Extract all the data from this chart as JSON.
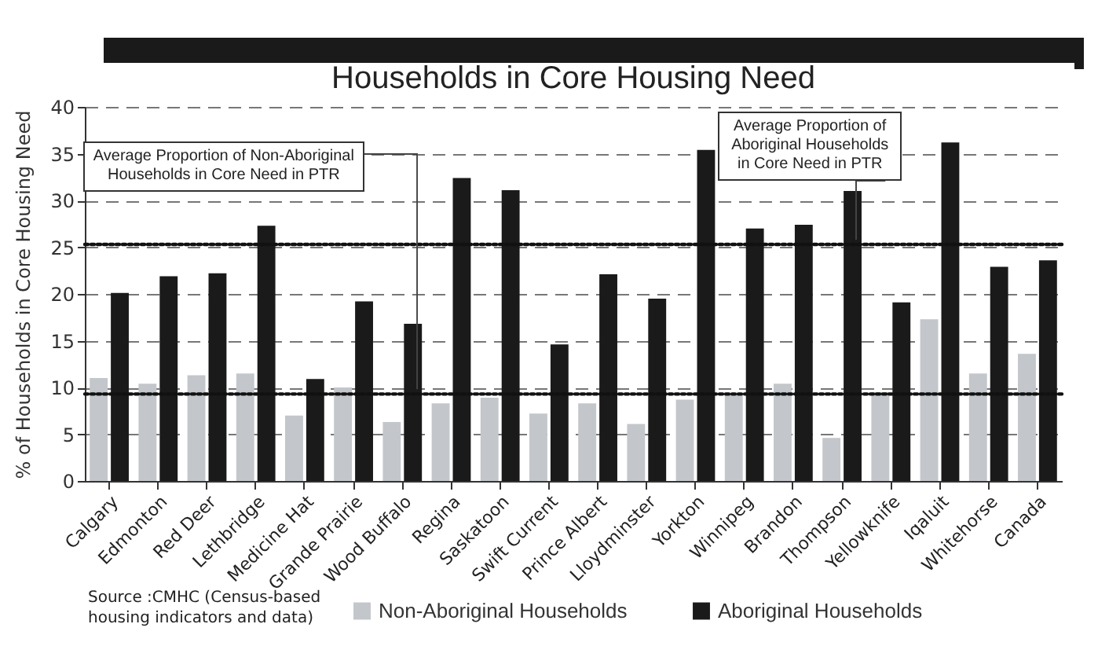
{
  "chart_data": {
    "type": "bar",
    "title": "Households in Core Housing Need",
    "ylabel": "% of Households in Core Housing Need",
    "categories": [
      "Calgary",
      "Edmonton",
      "Red Deer",
      "Lethbridge",
      "Medicine Hat",
      "Grande Prairie",
      "Wood Buffalo",
      "Regina",
      "Saskatoon",
      "Swift Current",
      "Prince Albert",
      "Lloydminster",
      "Yorkton",
      "Winnipeg",
      "Brandon",
      "Thompson",
      "Yellowknife",
      "Iqaluit",
      "Whitehorse",
      "Canada"
    ],
    "series": [
      {
        "name": "Non-Aboriginal Households",
        "color": "#c3c6ca",
        "values": [
          11,
          10.4,
          11.3,
          11.5,
          7,
          10,
          6.3,
          8.3,
          8.9,
          7.2,
          8.3,
          6.1,
          8.7,
          9.2,
          10.4,
          4.6,
          9.5,
          17.3,
          11.5,
          13.6
        ]
      },
      {
        "name": "Aboriginal Households",
        "color": "#1a1a1a",
        "values": [
          20.1,
          21.9,
          22.2,
          27.3,
          10.9,
          19.2,
          16.8,
          32.4,
          31.1,
          14.6,
          22.1,
          19.5,
          35.4,
          27.0,
          27.4,
          31.0,
          19.1,
          36.2,
          22.9,
          23.6
        ]
      }
    ],
    "ylim": [
      0,
      40
    ],
    "yticks": [
      0,
      5,
      10,
      15,
      20,
      25,
      30,
      35,
      40
    ],
    "grid": "y",
    "legend": "bottom",
    "ref_lines": [
      {
        "axis": "y",
        "value": 9.3,
        "label": "Average Proportion of Non-Aboriginal Households in Core Need in PTR",
        "line_style": "dotted"
      },
      {
        "axis": "y",
        "value": 25.3,
        "label": "Average Proportion of Aboriginal Households in Core Need in PTR",
        "line_style": "dotted"
      }
    ],
    "annotations": [
      "Source :CMHC (Census-based housing indicators and data)"
    ]
  }
}
